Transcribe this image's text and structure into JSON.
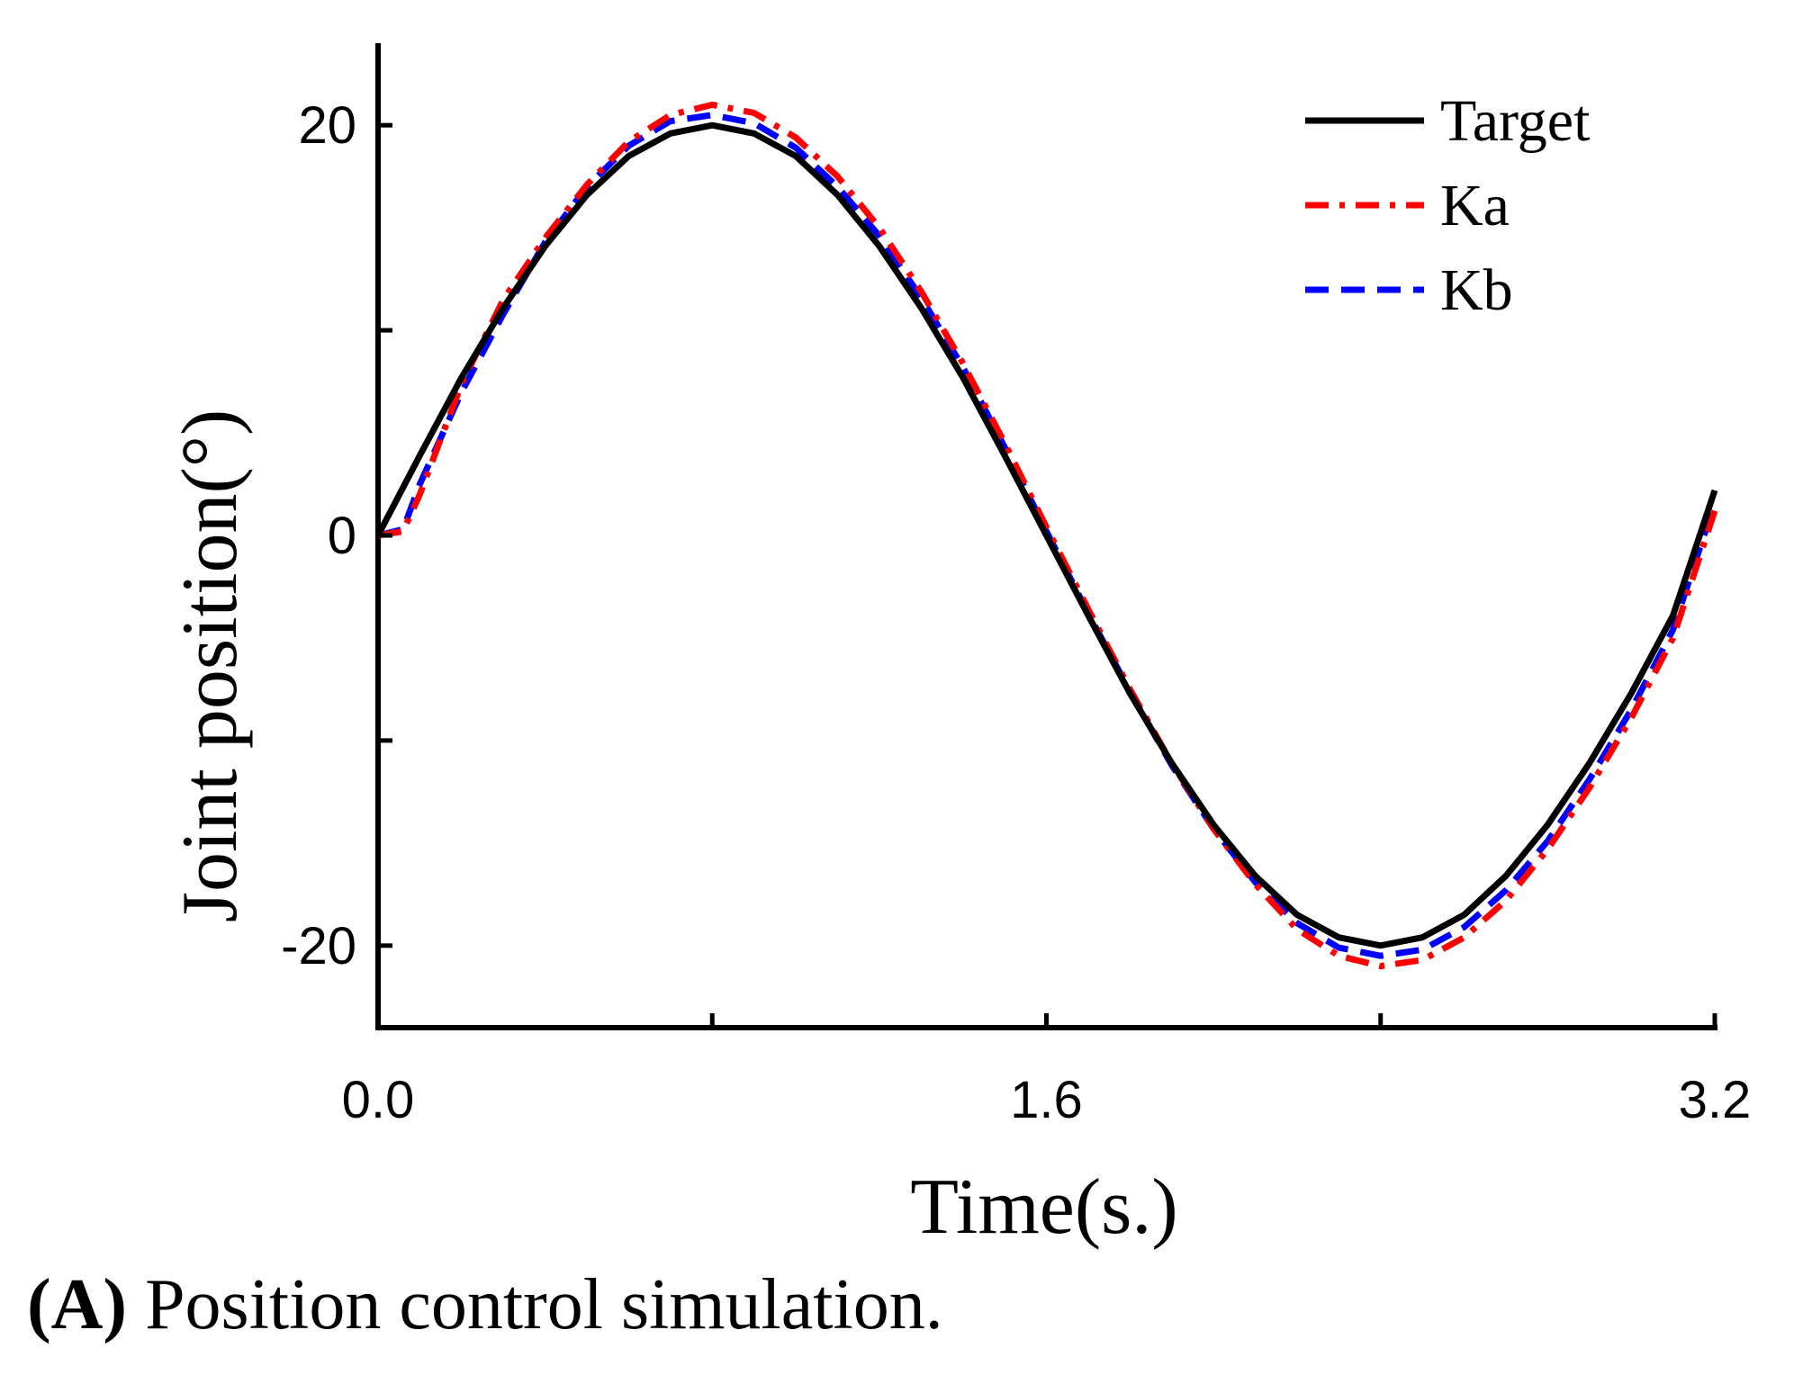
{
  "chart_data": {
    "type": "line",
    "title": "",
    "xlabel": "Time(s.)",
    "ylabel": "Joint position(°)",
    "xlim": [
      0,
      3.2
    ],
    "ylim": [
      -24,
      24
    ],
    "x_ticks": [
      0.0,
      0.8,
      1.6,
      2.4,
      3.2
    ],
    "x_tick_labels": [
      "0.0",
      "",
      "1.6",
      "",
      "3.2"
    ],
    "y_ticks": [
      -20,
      -10,
      0,
      10,
      20
    ],
    "y_tick_labels": [
      "-20",
      "",
      "0",
      "",
      "20"
    ],
    "grid": false,
    "legend_position": "top-right",
    "series": [
      {
        "name": "Target",
        "color": "#000000",
        "style": "solid",
        "x": [
          0.0,
          0.1,
          0.2,
          0.3,
          0.4,
          0.5,
          0.6,
          0.7,
          0.8,
          0.9,
          1.0,
          1.1,
          1.2,
          1.3,
          1.4,
          1.5,
          1.6,
          1.7,
          1.8,
          1.9,
          2.0,
          2.1,
          2.2,
          2.3,
          2.4,
          2.5,
          2.6,
          2.7,
          2.8,
          2.9,
          3.0,
          3.1,
          3.2
        ],
        "y": [
          0.0,
          3.9,
          7.7,
          11.1,
          14.1,
          16.6,
          18.5,
          19.6,
          20.0,
          19.6,
          18.5,
          16.6,
          14.1,
          11.1,
          7.7,
          3.9,
          0.0,
          -3.9,
          -7.7,
          -11.1,
          -14.1,
          -16.6,
          -18.5,
          -19.6,
          -20.0,
          -19.6,
          -18.5,
          -16.6,
          -14.1,
          -11.1,
          -7.7,
          -3.9,
          2.2
        ]
      },
      {
        "name": "Ka",
        "color": "#ff0000",
        "style": "dashdot",
        "x": [
          0.0,
          0.06,
          0.1,
          0.2,
          0.3,
          0.4,
          0.5,
          0.6,
          0.7,
          0.8,
          0.9,
          1.0,
          1.1,
          1.2,
          1.3,
          1.4,
          1.5,
          1.6,
          1.7,
          1.8,
          1.9,
          2.0,
          2.1,
          2.2,
          2.3,
          2.4,
          2.5,
          2.6,
          2.7,
          2.8,
          2.9,
          3.0,
          3.1,
          3.2
        ],
        "y": [
          0.0,
          0.2,
          2.0,
          7.4,
          11.5,
          14.5,
          17.1,
          19.2,
          20.5,
          21.0,
          20.6,
          19.4,
          17.5,
          15.0,
          11.9,
          8.4,
          4.5,
          0.4,
          -3.6,
          -7.5,
          -11.1,
          -14.3,
          -17.0,
          -19.2,
          -20.5,
          -21.0,
          -20.7,
          -19.6,
          -17.8,
          -15.3,
          -12.3,
          -8.9,
          -5.0,
          1.2
        ]
      },
      {
        "name": "Kb",
        "color": "#0000ff",
        "style": "dashed",
        "x": [
          0.0,
          0.06,
          0.1,
          0.2,
          0.3,
          0.4,
          0.5,
          0.6,
          0.7,
          0.8,
          0.9,
          1.0,
          1.1,
          1.2,
          1.3,
          1.4,
          1.5,
          1.6,
          1.7,
          1.8,
          1.9,
          2.0,
          2.1,
          2.2,
          2.3,
          2.4,
          2.5,
          2.6,
          2.7,
          2.8,
          2.9,
          3.0,
          3.1,
          3.2
        ],
        "y": [
          0.0,
          0.3,
          2.5,
          7.0,
          10.8,
          14.3,
          17.0,
          19.0,
          20.2,
          20.5,
          20.1,
          18.9,
          17.0,
          14.6,
          11.6,
          8.2,
          4.3,
          0.2,
          -3.8,
          -7.6,
          -11.2,
          -14.3,
          -16.9,
          -18.9,
          -20.1,
          -20.5,
          -20.2,
          -19.1,
          -17.3,
          -14.9,
          -11.9,
          -8.5,
          -4.6,
          1.6
        ]
      }
    ]
  },
  "caption": {
    "label": "(A)",
    "text": " Position control simulation."
  }
}
